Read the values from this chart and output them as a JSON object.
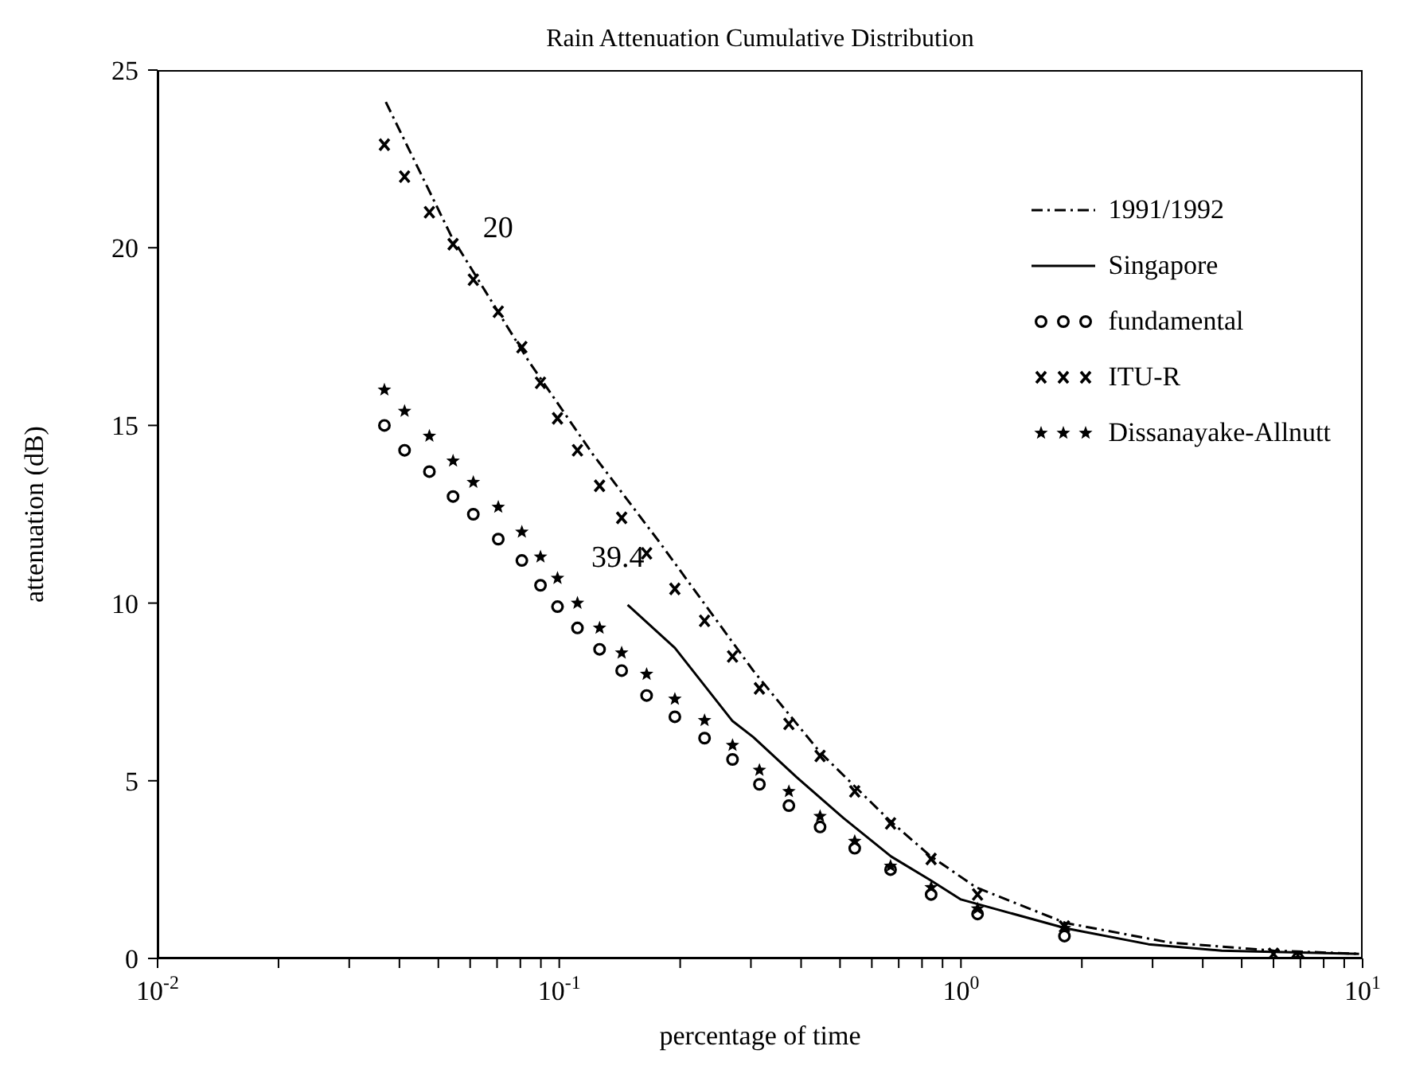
{
  "chart_data": {
    "type": "line",
    "title": "Rain Attenuation Cumulative Distribution",
    "xlabel": "percentage of time",
    "ylabel": "attenuation (dB)",
    "log": "x",
    "legend": "top right",
    "xlim": [
      0.01,
      10
    ],
    "ylim": [
      0,
      25
    ],
    "xticks": [
      {
        "value": 0.01,
        "label": "10$^{-2}$"
      },
      {
        "value": 0.02,
        "label": null
      },
      {
        "value": 0.03,
        "label": null
      },
      {
        "value": 0.04,
        "label": null
      },
      {
        "value": 0.05,
        "label": null
      },
      {
        "value": 0.06,
        "label": null
      },
      {
        "value": 0.07,
        "label": null
      },
      {
        "value": 0.08,
        "label": null
      },
      {
        "value": 0.09,
        "label": null
      },
      {
        "value": 0.1,
        "label": "10$^{-1}$"
      },
      {
        "value": 0.2,
        "label": null
      },
      {
        "value": 0.3,
        "label": null
      },
      {
        "value": 0.4,
        "label": null
      },
      {
        "value": 0.5,
        "label": null
      },
      {
        "value": 0.6,
        "label": null
      },
      {
        "value": 0.7,
        "label": null
      },
      {
        "value": 0.8,
        "label": null
      },
      {
        "value": 0.9,
        "label": null
      },
      {
        "value": 1,
        "label": "10$^{0}$"
      },
      {
        "value": 2,
        "label": null
      },
      {
        "value": 3,
        "label": null
      },
      {
        "value": 4,
        "label": null
      },
      {
        "value": 5,
        "label": null
      },
      {
        "value": 6,
        "label": null
      },
      {
        "value": 7,
        "label": null
      },
      {
        "value": 8,
        "label": null
      },
      {
        "value": 9,
        "label": null
      },
      {
        "value": 10,
        "label": "10$^{1}$"
      }
    ],
    "yticks": [
      0,
      5,
      10,
      15,
      20,
      25
    ],
    "annotations": [
      "20",
      "39.4"
    ],
    "series": [
      {
        "name": "1991/1992",
        "line_style": "dashed",
        "color": "#000000",
        "x": [
          0.037,
          0.054,
          0.084,
          0.121,
          0.178,
          0.304,
          0.446,
          0.662,
          0.836,
          1.09,
          1.82,
          3.3,
          6.0,
          9.8
        ],
        "values": [
          24.1,
          20.3,
          16.8,
          14.2,
          11.7,
          8.1,
          5.8,
          3.9,
          2.9,
          2.0,
          1.0,
          0.45,
          0.22,
          0.13
        ]
      },
      {
        "name": "Singapore",
        "line_style": "solid",
        "color": "#000000",
        "x": [
          0.148,
          0.194,
          0.27,
          0.304,
          0.39,
          0.51,
          0.67,
          0.84,
          1.0,
          1.82,
          2.93,
          4.46,
          9.8
        ],
        "values": [
          9.95,
          8.74,
          6.68,
          6.23,
          5.1,
          3.95,
          2.87,
          2.2,
          1.66,
          0.85,
          0.4,
          0.22,
          0.13
        ]
      },
      {
        "name": "fundamental",
        "type": "scatter",
        "marker": "circle",
        "color": "#000000",
        "x": [
          0.0367,
          0.0412,
          0.0475,
          0.0544,
          0.0611,
          0.0705,
          0.0807,
          0.0898,
          0.099,
          0.111,
          0.126,
          0.143,
          0.165,
          0.194,
          0.23,
          0.27,
          0.315,
          0.373,
          0.446,
          0.544,
          0.668,
          0.843,
          1.1,
          1.81,
          6.9
        ],
        "values": [
          15.0,
          14.3,
          13.7,
          13.0,
          12.5,
          11.8,
          11.2,
          10.5,
          9.9,
          9.3,
          8.7,
          8.1,
          7.4,
          6.8,
          6.2,
          5.6,
          4.9,
          4.3,
          3.7,
          3.1,
          2.5,
          1.8,
          1.25,
          0.63,
          0
        ]
      },
      {
        "name": "ITU-R",
        "type": "scatter",
        "marker": "cross",
        "color": "#000000",
        "x": [
          0.0367,
          0.0412,
          0.0475,
          0.0544,
          0.0611,
          0.0705,
          0.0807,
          0.0898,
          0.099,
          0.111,
          0.126,
          0.143,
          0.165,
          0.194,
          0.23,
          0.27,
          0.315,
          0.373,
          0.446,
          0.544,
          0.668,
          0.843,
          1.1,
          1.81,
          6.0
        ],
        "values": [
          22.9,
          22.0,
          21.0,
          20.1,
          19.1,
          18.2,
          17.2,
          16.2,
          15.2,
          14.3,
          13.3,
          12.4,
          11.4,
          10.4,
          9.5,
          8.5,
          7.6,
          6.6,
          5.7,
          4.7,
          3.8,
          2.8,
          1.8,
          0.9,
          0.13
        ]
      },
      {
        "name": "Dissanayake-Allnutt",
        "type": "scatter",
        "marker": "star",
        "color": "#000000",
        "x": [
          0.0367,
          0.0412,
          0.0475,
          0.0544,
          0.0611,
          0.0705,
          0.0807,
          0.0898,
          0.099,
          0.111,
          0.126,
          0.143,
          0.165,
          0.194,
          0.23,
          0.27,
          0.315,
          0.373,
          0.446,
          0.544,
          0.668,
          0.843,
          1.1,
          1.81,
          6.9
        ],
        "values": [
          16.0,
          15.4,
          14.7,
          14.0,
          13.4,
          12.7,
          12.0,
          11.3,
          10.7,
          10.0,
          9.3,
          8.6,
          8.0,
          7.3,
          6.7,
          6.0,
          5.3,
          4.7,
          4.0,
          3.3,
          2.6,
          2.0,
          1.4,
          0.85,
          0
        ]
      }
    ]
  }
}
